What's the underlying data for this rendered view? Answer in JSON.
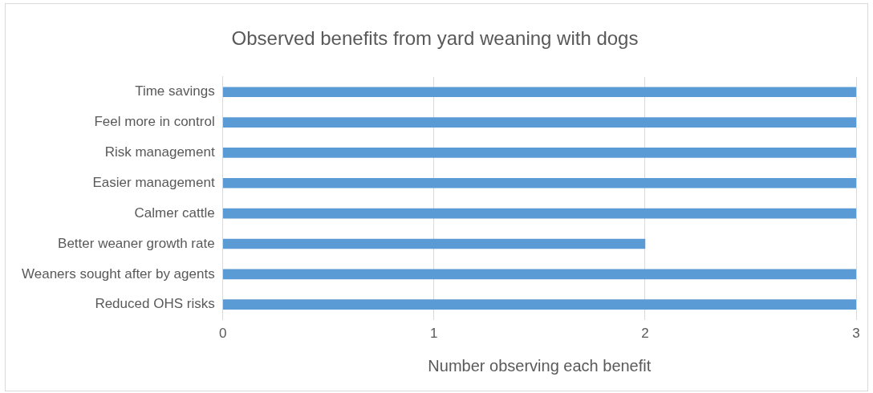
{
  "chart_data": {
    "type": "bar",
    "orientation": "horizontal",
    "title": "Observed benefits from yard weaning with dogs",
    "xlabel": "Number observing each benefit",
    "categories": [
      "Time savings",
      "Feel more in control",
      "Risk management",
      "Easier management",
      "Calmer cattle",
      "Better weaner growth rate",
      "Weaners sought after by agents",
      "Reduced OHS risks"
    ],
    "values": [
      3,
      3,
      3,
      3,
      3,
      2,
      3,
      3
    ],
    "color": "#5b9bd5",
    "xlim": [
      0,
      3
    ],
    "xticks": [
      0,
      1,
      2,
      3
    ],
    "grid": "x",
    "legend": false
  }
}
